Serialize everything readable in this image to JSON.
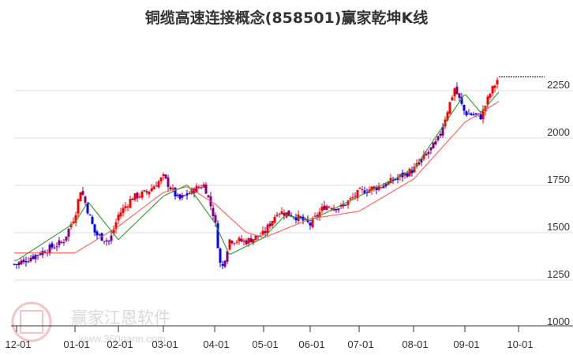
{
  "title": "铜缆高速连接概念(858501)赢家乾坤K线",
  "watermark": {
    "brand": "赢家江恩软件",
    "url": "www.360gann.com",
    "seal": [
      "江",
      "赢",
      "恩",
      "家"
    ]
  },
  "colors": {
    "up": "#ff0000",
    "down": "#0000ff",
    "mixed": "#800080",
    "ma_short": "#008000",
    "ma_long": "#ff0000",
    "grid": "#dddddd",
    "last_price_line": "#000000"
  },
  "chart_data": {
    "type": "candlestick",
    "title": "铜缆高速连接概念(858501)赢家乾坤K线",
    "xlabel": "",
    "ylabel": "",
    "ylim": [
      1000,
      2350
    ],
    "y_ticks": [
      1000,
      1250,
      1500,
      1750,
      2000,
      2250
    ],
    "x_ticks": [
      "12-01",
      "01-01",
      "02-01",
      "03-01",
      "04-01",
      "05-01",
      "06-01",
      "07-01",
      "08-01",
      "09-01",
      "10-01"
    ],
    "grid": true,
    "legend": "none",
    "series": [
      {
        "name": "close (approx.)",
        "points": [
          [
            "12-01",
            1300
          ],
          [
            "12-15",
            1370
          ],
          [
            "12-25",
            1420
          ],
          [
            "01-01",
            1560
          ],
          [
            "01-05",
            1700
          ],
          [
            "01-15",
            1460
          ],
          [
            "01-25",
            1420
          ],
          [
            "02-01",
            1560
          ],
          [
            "02-10",
            1650
          ],
          [
            "02-20",
            1680
          ],
          [
            "03-01",
            1760
          ],
          [
            "03-10",
            1640
          ],
          [
            "03-20",
            1700
          ],
          [
            "03-25",
            1720
          ],
          [
            "04-01",
            1540
          ],
          [
            "04-05",
            1260
          ],
          [
            "04-10",
            1430
          ],
          [
            "04-20",
            1420
          ],
          [
            "05-01",
            1460
          ],
          [
            "05-10",
            1580
          ],
          [
            "05-20",
            1560
          ],
          [
            "06-01",
            1510
          ],
          [
            "06-10",
            1610
          ],
          [
            "06-20",
            1600
          ],
          [
            "07-01",
            1680
          ],
          [
            "07-15",
            1720
          ],
          [
            "08-01",
            1800
          ],
          [
            "08-15",
            1950
          ],
          [
            "08-25",
            2230
          ],
          [
            "09-01",
            2100
          ],
          [
            "09-10",
            2080
          ],
          [
            "09-15",
            2200
          ],
          [
            "09-20",
            2290
          ]
        ]
      },
      {
        "name": "MA short (green)",
        "points": [
          [
            "12-01",
            1320
          ],
          [
            "01-01",
            1520
          ],
          [
            "01-10",
            1630
          ],
          [
            "02-01",
            1430
          ],
          [
            "03-01",
            1660
          ],
          [
            "03-15",
            1720
          ],
          [
            "04-01",
            1520
          ],
          [
            "04-10",
            1350
          ],
          [
            "05-01",
            1440
          ],
          [
            "05-15",
            1560
          ],
          [
            "06-01",
            1530
          ],
          [
            "07-01",
            1660
          ],
          [
            "08-01",
            1800
          ],
          [
            "09-01",
            2200
          ],
          [
            "09-10",
            2100
          ],
          [
            "09-20",
            2210
          ]
        ]
      },
      {
        "name": "MA long (red)",
        "points": [
          [
            "12-01",
            1360
          ],
          [
            "01-01",
            1360
          ],
          [
            "02-01",
            1500
          ],
          [
            "03-01",
            1680
          ],
          [
            "03-15",
            1710
          ],
          [
            "04-01",
            1620
          ],
          [
            "04-20",
            1470
          ],
          [
            "05-01",
            1440
          ],
          [
            "06-01",
            1540
          ],
          [
            "07-01",
            1580
          ],
          [
            "08-01",
            1750
          ],
          [
            "09-01",
            2050
          ],
          [
            "09-20",
            2160
          ]
        ]
      }
    ],
    "last_price": 2290,
    "annotations": [
      "dashed last-price line near 2290"
    ]
  }
}
